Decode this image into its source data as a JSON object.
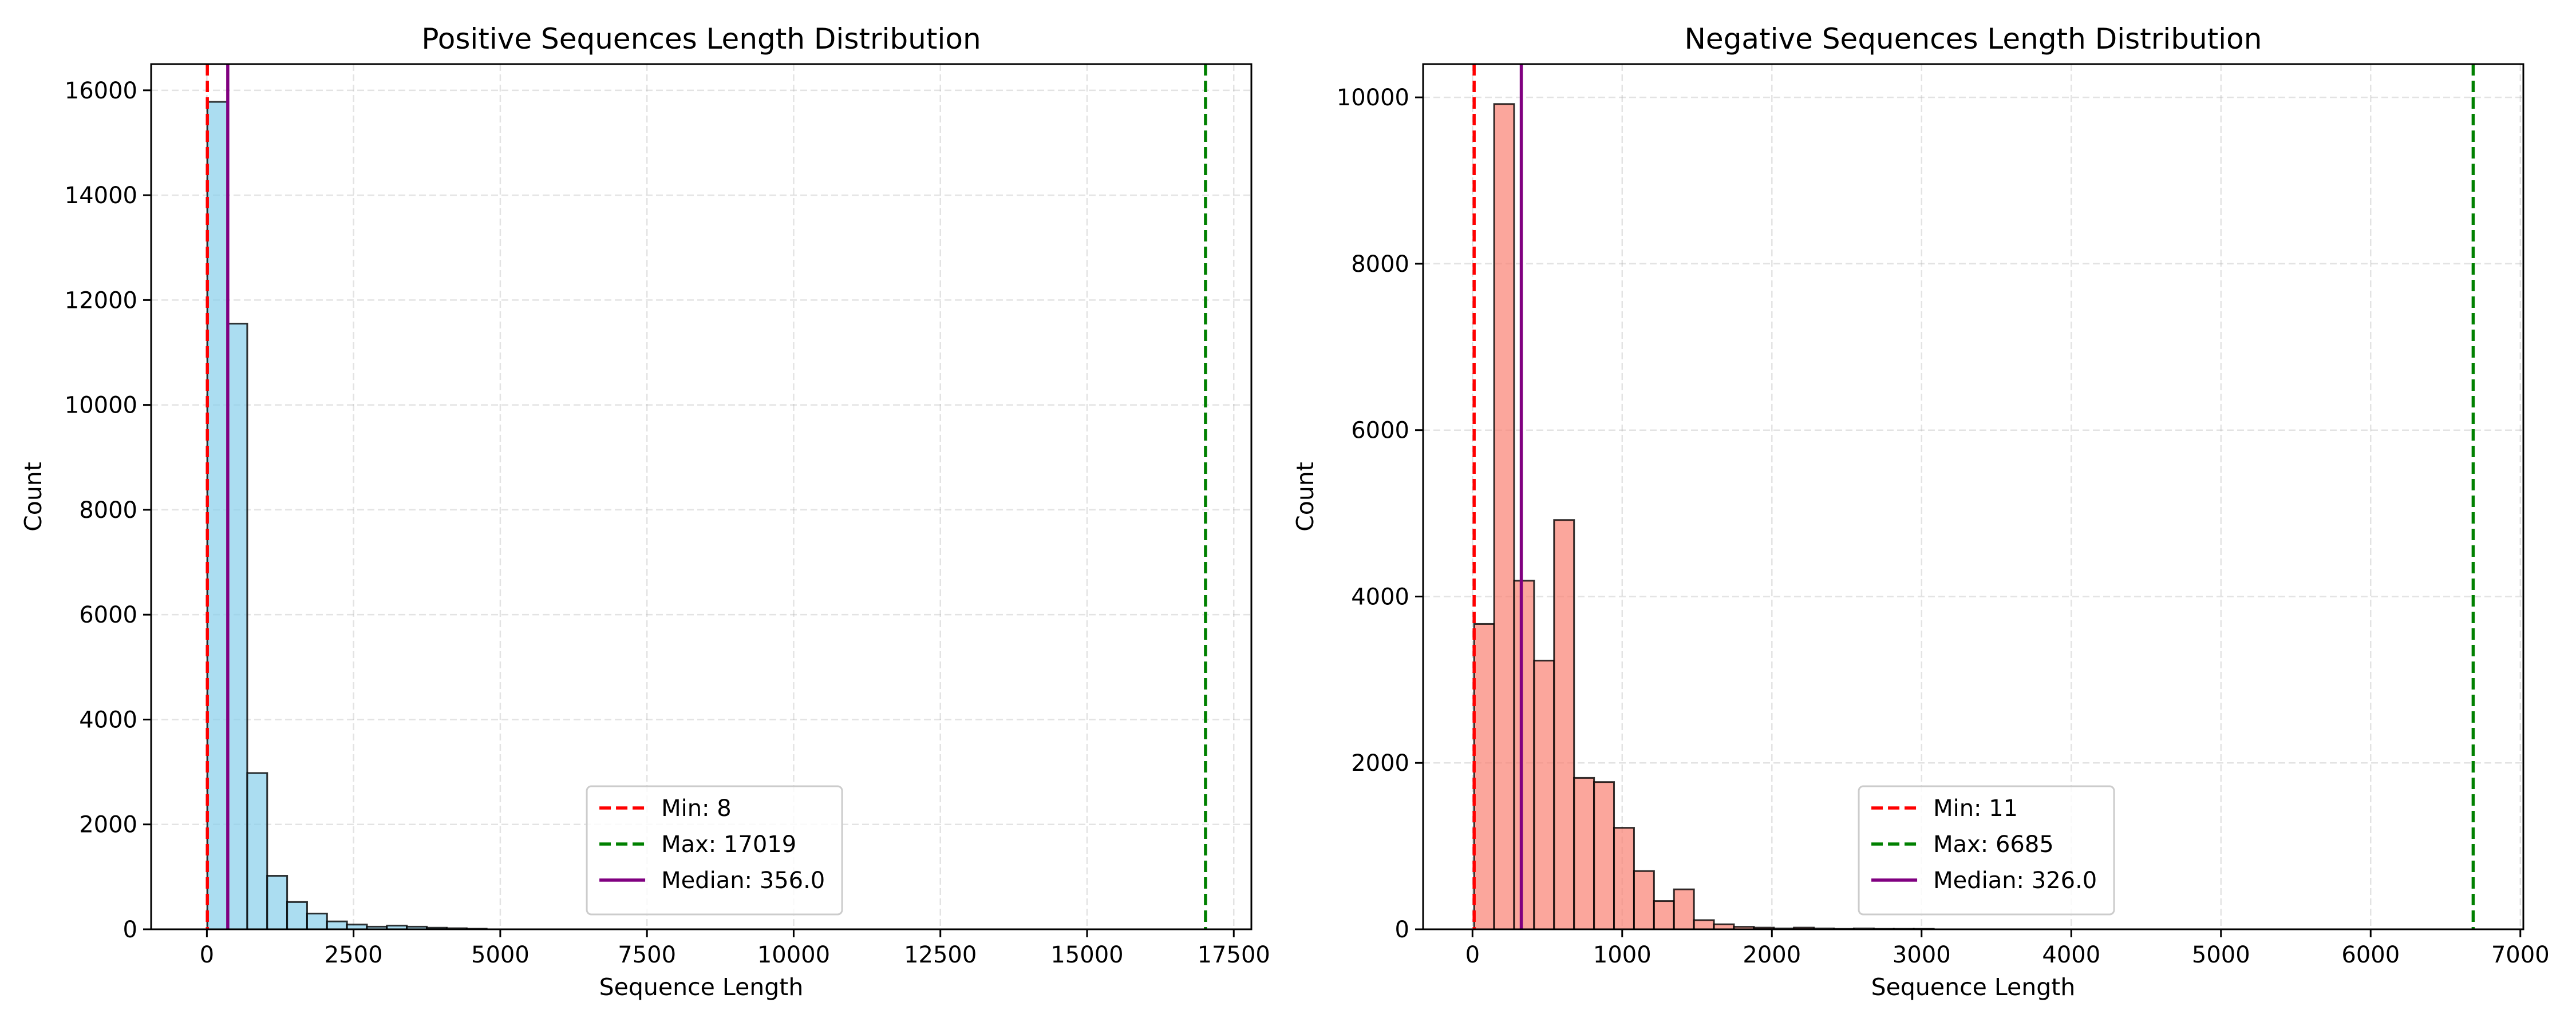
{
  "chart_data": [
    {
      "type": "bar",
      "title": "Positive Sequences Length Distribution",
      "xlabel": "Sequence Length",
      "ylabel": "Count",
      "xlim": [
        -950,
        17800
      ],
      "ylim": [
        0,
        16500
      ],
      "xticks": [
        0,
        2500,
        5000,
        7500,
        10000,
        12500,
        15000,
        17500
      ],
      "yticks": [
        0,
        2000,
        4000,
        6000,
        8000,
        10000,
        12000,
        14000,
        16000
      ],
      "grid": true,
      "bar_color": "#87ceeb",
      "bin_width": 340,
      "bins_start": [
        8,
        348,
        688,
        1028,
        1368,
        1708,
        2048,
        2388,
        2728,
        3068,
        3408,
        3748,
        4088,
        4428
      ],
      "values": [
        15780,
        11550,
        2980,
        1020,
        520,
        300,
        150,
        90,
        50,
        70,
        50,
        30,
        20,
        10
      ],
      "reference_lines": [
        {
          "label": "Min: 8",
          "value": 8,
          "color": "#ff0000",
          "style": "dashed"
        },
        {
          "label": "Max: 17019",
          "value": 17019,
          "color": "#008000",
          "style": "dashed"
        },
        {
          "label": "Median: 356.0",
          "value": 356,
          "color": "#800080",
          "style": "solid"
        }
      ],
      "legend_position": "lower-center"
    },
    {
      "type": "bar",
      "title": "Negative Sequences Length Distribution",
      "xlabel": "Sequence Length",
      "ylabel": "Count",
      "xlim": [
        -330,
        7020
      ],
      "ylim": [
        0,
        10400
      ],
      "xticks": [
        0,
        1000,
        2000,
        3000,
        4000,
        5000,
        6000,
        7000
      ],
      "yticks": [
        0,
        2000,
        4000,
        6000,
        8000,
        10000
      ],
      "grid": true,
      "bar_color": "#fa8072",
      "bin_width": 133.5,
      "bins_start": [
        11,
        144.5,
        278,
        411.5,
        545,
        678.5,
        812,
        945.5,
        1079,
        1212.5,
        1346,
        1479.5,
        1613,
        1746.5,
        1880,
        2013.5,
        2147,
        2280.5,
        2414,
        2547.5,
        2681,
        2814.5,
        2948
      ],
      "values": [
        3670,
        9920,
        4190,
        3230,
        4920,
        1820,
        1770,
        1220,
        700,
        340,
        480,
        110,
        60,
        30,
        20,
        10,
        20,
        10,
        5,
        10,
        5,
        5,
        5
      ],
      "reference_lines": [
        {
          "label": "Min: 11",
          "value": 11,
          "color": "#ff0000",
          "style": "dashed"
        },
        {
          "label": "Max: 6685",
          "value": 6685,
          "color": "#008000",
          "style": "dashed"
        },
        {
          "label": "Median: 326.0",
          "value": 326,
          "color": "#800080",
          "style": "solid"
        }
      ],
      "legend_position": "lower-center"
    }
  ]
}
